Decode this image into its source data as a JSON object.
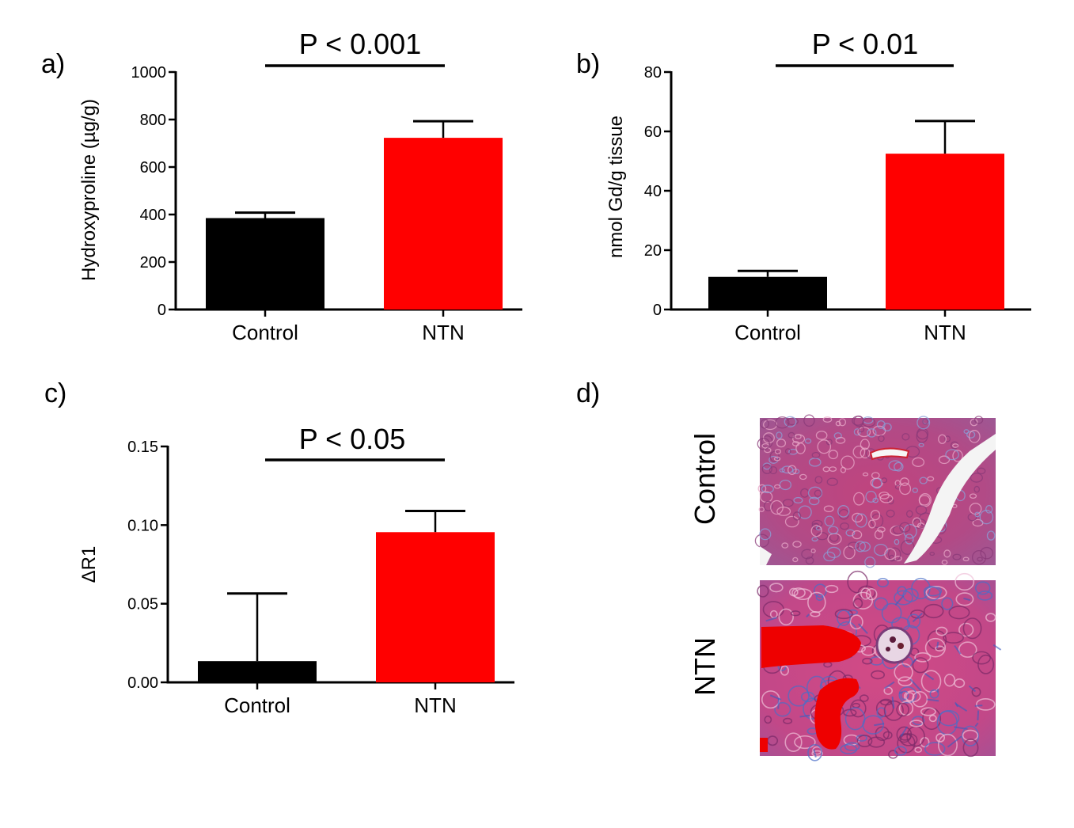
{
  "chart_data": [
    {
      "panel": "a)",
      "type": "bar",
      "categories": [
        "Control",
        "NTN"
      ],
      "values": [
        385,
        723
      ],
      "errors": [
        23,
        70
      ],
      "colors": [
        "#000000",
        "#ff0000"
      ],
      "ylabel": "Hydroxyproline (µg/g)",
      "ylim": [
        0,
        1000
      ],
      "yticks": [
        0,
        200,
        400,
        600,
        800,
        1000
      ],
      "ytick_labels": [
        "0",
        "200",
        "400",
        "600",
        "800",
        "1000"
      ],
      "significance": "P < 0.001"
    },
    {
      "panel": "b)",
      "type": "bar",
      "categories": [
        "Control",
        "NTN"
      ],
      "values": [
        11,
        52.5
      ],
      "errors": [
        2,
        11
      ],
      "colors": [
        "#000000",
        "#ff0000"
      ],
      "ylabel": "nmol Gd/g tissue",
      "ylim": [
        0,
        80
      ],
      "yticks": [
        0,
        20,
        40,
        60,
        80
      ],
      "ytick_labels": [
        "0",
        "20",
        "40",
        "60",
        "80"
      ],
      "significance": "P < 0.01"
    },
    {
      "panel": "c)",
      "type": "bar",
      "categories": [
        "Control",
        "NTN"
      ],
      "values": [
        0.0135,
        0.0955
      ],
      "errors": [
        0.043,
        0.0135
      ],
      "colors": [
        "#000000",
        "#ff0000"
      ],
      "ylabel": "ΔR1",
      "ylim": [
        0,
        0.15
      ],
      "yticks": [
        0,
        0.05,
        0.1,
        0.15
      ],
      "ytick_labels": [
        "0.00",
        "0.05",
        "0.10",
        "0.15"
      ],
      "significance": "P < 0.05"
    }
  ],
  "panel_d": {
    "label": "d)",
    "rows": [
      "Control",
      "NTN"
    ]
  }
}
